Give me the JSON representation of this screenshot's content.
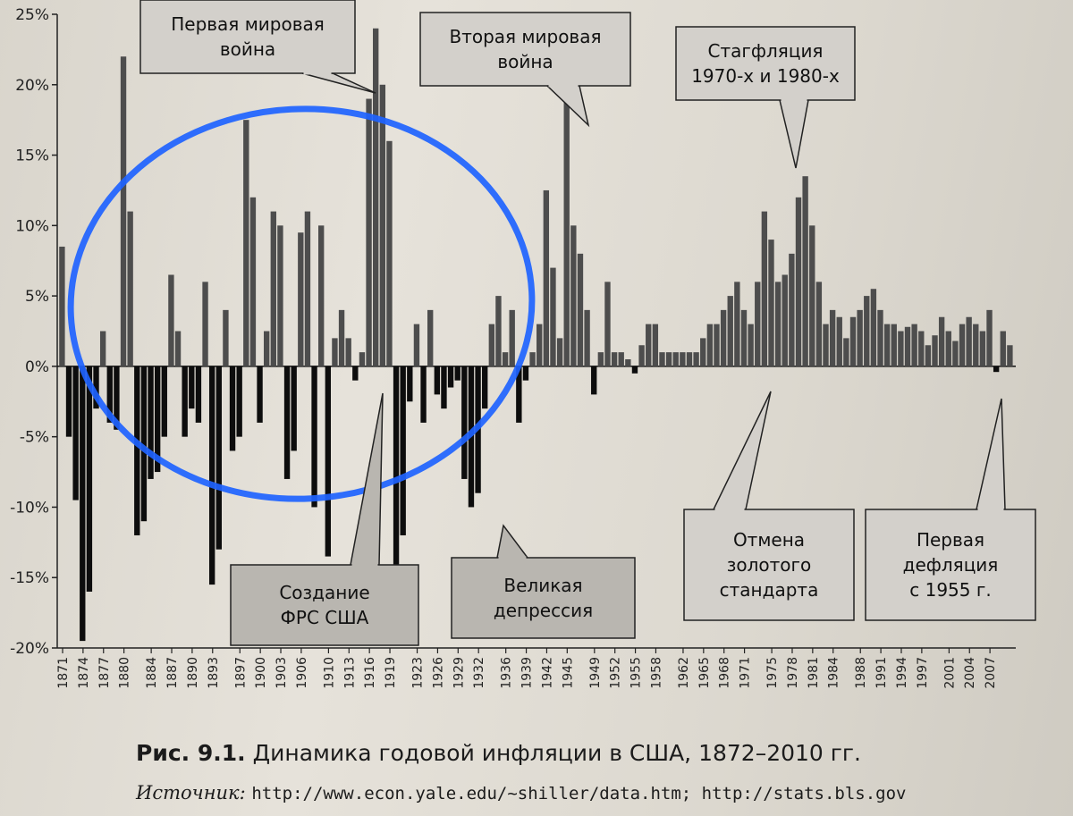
{
  "chart_data": {
    "type": "bar",
    "title": "",
    "xlabel": "",
    "ylabel": "",
    "ylim": [
      -20,
      25
    ],
    "y_ticks": [
      "25%",
      "20%",
      "15%",
      "10%",
      "5%",
      "0%",
      "-5%",
      "-10%",
      "-15%",
      "-20%"
    ],
    "y_tick_values": [
      25,
      20,
      15,
      10,
      5,
      0,
      -5,
      -10,
      -15,
      -20
    ],
    "x_tick_labels": [
      "1871",
      "1874",
      "1877",
      "1880",
      "1884",
      "1887",
      "1890",
      "1893",
      "1897",
      "1900",
      "1903",
      "1906",
      "1910",
      "1913",
      "1916",
      "1919",
      "1923",
      "1926",
      "1929",
      "1932",
      "1936",
      "1939",
      "1942",
      "1945",
      "1949",
      "1952",
      "1955",
      "1958",
      "1962",
      "1965",
      "1968",
      "1971",
      "1975",
      "1978",
      "1981",
      "1984",
      "1988",
      "1991",
      "1994",
      "1997",
      "2001",
      "2004",
      "2007"
    ],
    "x_tick_values": [
      1871,
      1874,
      1877,
      1880,
      1884,
      1887,
      1890,
      1893,
      1897,
      1900,
      1903,
      1906,
      1910,
      1913,
      1916,
      1919,
      1923,
      1926,
      1929,
      1932,
      1936,
      1939,
      1942,
      1945,
      1949,
      1952,
      1955,
      1958,
      1962,
      1965,
      1968,
      1971,
      1975,
      1978,
      1981,
      1984,
      1988,
      1991,
      1994,
      1997,
      2001,
      2004,
      2007
    ],
    "x_range": [
      1871,
      2010
    ],
    "series": [
      {
        "x": [
          1871,
          1872,
          1873,
          1874,
          1875,
          1876,
          1877,
          1878,
          1879,
          1880,
          1881,
          1882,
          1883,
          1884,
          1885,
          1886,
          1887,
          1888,
          1889,
          1890,
          1891,
          1892,
          1893,
          1894,
          1895,
          1896,
          1897,
          1898,
          1899,
          1900,
          1901,
          1902,
          1903,
          1904,
          1905,
          1906,
          1907,
          1908,
          1909,
          1910,
          1911,
          1912,
          1913,
          1914,
          1915,
          1916,
          1917,
          1918,
          1919,
          1920,
          1921,
          1922,
          1923,
          1924,
          1925,
          1926,
          1927,
          1928,
          1929,
          1930,
          1931,
          1932,
          1933,
          1934,
          1935,
          1936,
          1937,
          1938,
          1939,
          1940,
          1941,
          1942,
          1943,
          1944,
          1945,
          1946,
          1947,
          1948,
          1949,
          1950,
          1951,
          1952,
          1953,
          1954,
          1955,
          1956,
          1957,
          1958,
          1959,
          1960,
          1961,
          1962,
          1963,
          1964,
          1965,
          1966,
          1967,
          1968,
          1969,
          1970,
          1971,
          1972,
          1973,
          1974,
          1975,
          1976,
          1977,
          1978,
          1979,
          1980,
          1981,
          1982,
          1983,
          1984,
          1985,
          1986,
          1987,
          1988,
          1989,
          1990,
          1991,
          1992,
          1993,
          1994,
          1995,
          1996,
          1997,
          1998,
          1999,
          2000,
          2001,
          2002,
          2003,
          2004,
          2005,
          2006,
          2007,
          2008,
          2009,
          2010
        ],
        "values": [
          8.5,
          -5,
          -9.5,
          -19.5,
          -16,
          -3,
          2.5,
          -4,
          -4.5,
          22,
          11,
          -12,
          -11,
          -8,
          -7.5,
          -5,
          6.5,
          2.5,
          -5,
          -3,
          -4,
          6,
          -15.5,
          -13,
          4,
          -6,
          -5,
          17.5,
          12,
          -4,
          2.5,
          11,
          10,
          -8,
          -6,
          9.5,
          11,
          -10,
          10,
          -13.5,
          2,
          4,
          2,
          -1,
          1,
          19,
          24,
          20,
          16,
          -15,
          -12,
          -2.5,
          3,
          -4,
          4,
          -2,
          -3,
          -1.5,
          -1,
          -8,
          -10,
          -9,
          -3,
          3,
          5,
          1,
          4,
          -4,
          -1,
          1,
          3,
          12.5,
          7,
          2,
          19,
          10,
          8,
          4,
          -2,
          1,
          6,
          1,
          1,
          0.5,
          -0.5,
          1.5,
          3,
          3,
          1,
          1,
          1,
          1,
          1,
          1,
          2,
          3,
          3,
          4,
          5,
          6,
          4,
          3,
          6,
          11,
          9,
          6,
          6.5,
          8,
          12,
          13.5,
          10,
          6,
          3,
          4,
          3.5,
          2,
          3.5,
          4,
          5,
          5.5,
          4,
          3,
          3,
          2.5,
          2.8,
          3,
          2.5,
          1.5,
          2.2,
          3.5,
          2.5,
          1.8,
          3,
          3.5,
          3,
          2.5,
          4,
          -0.4,
          2.5,
          1.5
        ]
      }
    ]
  },
  "callouts": {
    "ww1": "Первая мировая\nвойна",
    "ww2": "Вторая мировая\nвойна",
    "stagflation": "Стагфляция\n1970-х и 1980-х",
    "fed": "Создание\nФРС США",
    "depression": "Великая\nдепрессия",
    "gold": "Отмена\nзолотого\nстандарта",
    "deflation": "Первая\nдефляция\nс 1955 г."
  },
  "caption": {
    "figure_label": "Рис. 9.1.",
    "text": "Динамика годовой инфляции в США, 1872–2010 гг."
  },
  "source": {
    "label": "Источник:",
    "urls": "http://www.econ.yale.edu/~shiller/data.htm; http://stats.bls.gov"
  },
  "colors": {
    "positive_bar": "#4d4d4d",
    "negative_bar": "#0d0d0d",
    "callout_fill": "#d3d0cb",
    "callout_fill_dark": "#b9b6b0",
    "ellipse": "#1e63ff"
  }
}
